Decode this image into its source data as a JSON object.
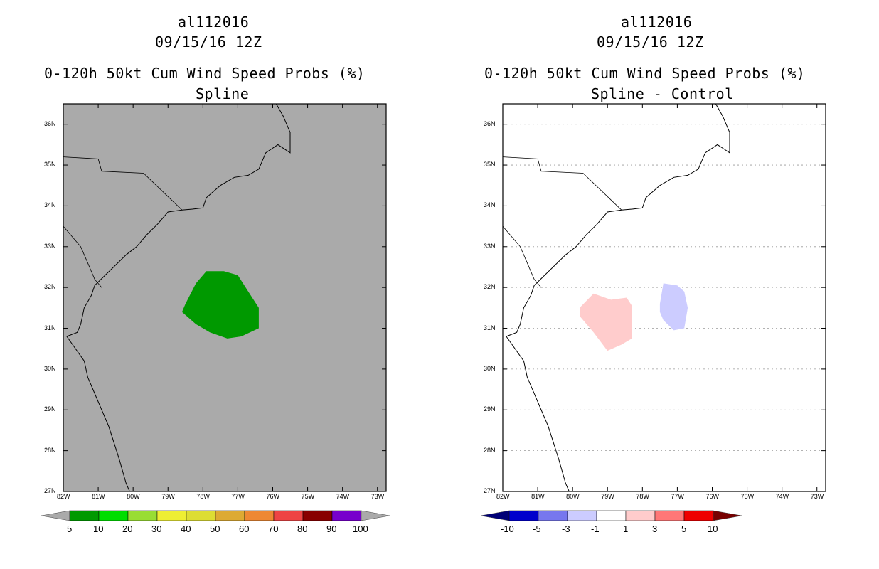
{
  "panels": [
    {
      "id": "left",
      "title_line1": "al112016",
      "title_line2": "09/15/16 12Z",
      "title_line3": "0-120h 50kt Cum Wind Speed Probs (%)",
      "title_line4": "Spline",
      "background": "#aaaaaa",
      "colorbar": {
        "colors": [
          "#009900",
          "#00dd00",
          "#99dd33",
          "#eeee33",
          "#dddd33",
          "#ddaa33",
          "#ee8833",
          "#ee4444",
          "#880000",
          "#7700cc"
        ],
        "end_low_color": "#aaaaaa",
        "end_high_color": "#aaaaaa",
        "labels": [
          "5",
          "10",
          "20",
          "30",
          "40",
          "50",
          "60",
          "70",
          "80",
          "90",
          "100"
        ]
      }
    },
    {
      "id": "right",
      "title_line1": "al112016",
      "title_line2": "09/15/16 12Z",
      "title_line3": "0-120h 50kt Cum Wind Speed Probs (%)",
      "title_line4": "Spline - Control",
      "background": "#ffffff",
      "colorbar": {
        "colors": [
          "#0000cc",
          "#7777ee",
          "#ccccff",
          "#ffffff",
          "#ffcccc",
          "#ff7777",
          "#ee0000"
        ],
        "end_low_color": "#000077",
        "end_high_color": "#770000",
        "labels": [
          "-10",
          "-5",
          "-3",
          "-1",
          "1",
          "3",
          "5",
          "10"
        ]
      }
    }
  ],
  "lat_labels": [
    "36N",
    "35N",
    "34N",
    "33N",
    "32N",
    "31N",
    "30N",
    "29N",
    "28N",
    "27N"
  ],
  "lon_labels": [
    "82W",
    "81W",
    "80W",
    "79W",
    "78W",
    "77W",
    "76W",
    "75W",
    "74W",
    "73W"
  ],
  "fields": {
    "left": [
      {
        "value_range": "5-10",
        "color": "#009900",
        "polygon": [
          [
            -78.5,
            31.6
          ],
          [
            -78.2,
            32.1
          ],
          [
            -77.9,
            32.4
          ],
          [
            -77.4,
            32.4
          ],
          [
            -77.0,
            32.3
          ],
          [
            -76.7,
            31.9
          ],
          [
            -76.4,
            31.5
          ],
          [
            -76.4,
            31.0
          ],
          [
            -76.9,
            30.8
          ],
          [
            -77.3,
            30.75
          ],
          [
            -77.8,
            30.9
          ],
          [
            -78.2,
            31.1
          ],
          [
            -78.6,
            31.4
          ]
        ]
      }
    ],
    "right": [
      {
        "value_range": "1-3",
        "color": "#ffcccc",
        "polygon": [
          [
            -79.8,
            31.5
          ],
          [
            -79.4,
            31.85
          ],
          [
            -78.9,
            31.7
          ],
          [
            -78.45,
            31.75
          ],
          [
            -78.3,
            31.55
          ],
          [
            -78.3,
            30.75
          ],
          [
            -78.6,
            30.6
          ],
          [
            -79.0,
            30.45
          ],
          [
            -79.4,
            30.9
          ],
          [
            -79.8,
            31.3
          ]
        ]
      },
      {
        "value_range": "-3--1",
        "color": "#ccccff",
        "polygon": [
          [
            -77.5,
            31.6
          ],
          [
            -77.4,
            32.1
          ],
          [
            -77.0,
            32.05
          ],
          [
            -76.8,
            31.9
          ],
          [
            -76.7,
            31.5
          ],
          [
            -76.8,
            31.0
          ],
          [
            -77.1,
            30.95
          ],
          [
            -77.4,
            31.2
          ],
          [
            -77.5,
            31.4
          ]
        ]
      }
    ]
  },
  "coastline": [
    [
      -81.9,
      30.8
    ],
    [
      -81.6,
      30.9
    ],
    [
      -81.5,
      31.1
    ],
    [
      -81.4,
      31.5
    ],
    [
      -81.2,
      31.8
    ],
    [
      -81.1,
      32.05
    ],
    [
      -80.8,
      32.3
    ],
    [
      -80.5,
      32.55
    ],
    [
      -80.2,
      32.8
    ],
    [
      -79.9,
      33.0
    ],
    [
      -79.6,
      33.3
    ],
    [
      -79.3,
      33.55
    ],
    [
      -79.0,
      33.85
    ],
    [
      -78.6,
      33.9
    ],
    [
      -78.3,
      33.92
    ],
    [
      -78.0,
      33.95
    ],
    [
      -77.9,
      34.2
    ],
    [
      -77.5,
      34.5
    ],
    [
      -77.1,
      34.7
    ],
    [
      -76.7,
      34.75
    ],
    [
      -76.4,
      34.9
    ],
    [
      -76.2,
      35.3
    ],
    [
      -75.85,
      35.5
    ],
    [
      -75.5,
      35.3
    ],
    [
      -75.5,
      35.8
    ],
    [
      -75.7,
      36.2
    ],
    [
      -75.9,
      36.5
    ]
  ],
  "florida_coast": [
    [
      -81.9,
      30.8
    ],
    [
      -81.4,
      30.2
    ],
    [
      -81.3,
      29.8
    ],
    [
      -81.0,
      29.2
    ],
    [
      -80.7,
      28.6
    ],
    [
      -80.55,
      28.2
    ],
    [
      -80.4,
      27.8
    ],
    [
      -80.2,
      27.2
    ],
    [
      -80.1,
      27.0
    ]
  ],
  "borders": [
    [
      [
        -82.0,
        35.2
      ],
      [
        -81.0,
        35.15
      ],
      [
        -80.9,
        34.85
      ],
      [
        -79.7,
        34.8
      ],
      [
        -78.6,
        33.9
      ]
    ],
    [
      [
        -82.0,
        33.5
      ],
      [
        -81.8,
        33.3
      ],
      [
        -81.5,
        33.0
      ],
      [
        -81.3,
        32.6
      ],
      [
        -81.1,
        32.2
      ],
      [
        -80.9,
        32.0
      ]
    ]
  ]
}
